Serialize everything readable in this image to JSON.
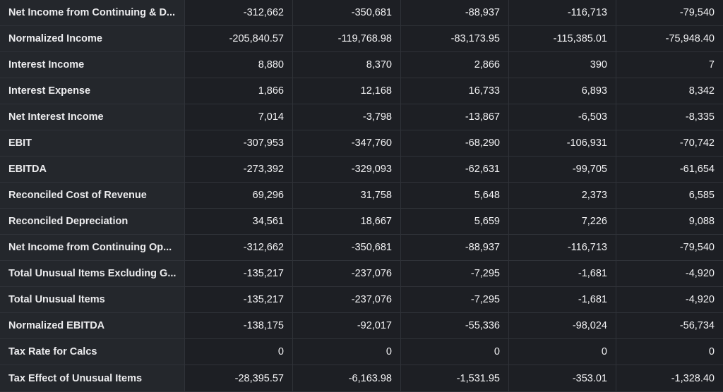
{
  "rows": [
    {
      "label": "Net Income from Continuing & D...",
      "values": [
        "-312,662",
        "-350,681",
        "-88,937",
        "-116,713",
        "-79,540"
      ]
    },
    {
      "label": "Normalized Income",
      "values": [
        "-205,840.57",
        "-119,768.98",
        "-83,173.95",
        "-115,385.01",
        "-75,948.40"
      ]
    },
    {
      "label": "Interest Income",
      "values": [
        "8,880",
        "8,370",
        "2,866",
        "390",
        "7"
      ]
    },
    {
      "label": "Interest Expense",
      "values": [
        "1,866",
        "12,168",
        "16,733",
        "6,893",
        "8,342"
      ]
    },
    {
      "label": "Net Interest Income",
      "values": [
        "7,014",
        "-3,798",
        "-13,867",
        "-6,503",
        "-8,335"
      ]
    },
    {
      "label": "EBIT",
      "values": [
        "-307,953",
        "-347,760",
        "-68,290",
        "-106,931",
        "-70,742"
      ]
    },
    {
      "label": "EBITDA",
      "values": [
        "-273,392",
        "-329,093",
        "-62,631",
        "-99,705",
        "-61,654"
      ]
    },
    {
      "label": "Reconciled Cost of Revenue",
      "values": [
        "69,296",
        "31,758",
        "5,648",
        "2,373",
        "6,585"
      ]
    },
    {
      "label": "Reconciled Depreciation",
      "values": [
        "34,561",
        "18,667",
        "5,659",
        "7,226",
        "9,088"
      ]
    },
    {
      "label": "Net Income from Continuing Op...",
      "values": [
        "-312,662",
        "-350,681",
        "-88,937",
        "-116,713",
        "-79,540"
      ]
    },
    {
      "label": "Total Unusual Items Excluding G...",
      "values": [
        "-135,217",
        "-237,076",
        "-7,295",
        "-1,681",
        "-4,920"
      ]
    },
    {
      "label": "Total Unusual Items",
      "values": [
        "-135,217",
        "-237,076",
        "-7,295",
        "-1,681",
        "-4,920"
      ]
    },
    {
      "label": "Normalized EBITDA",
      "values": [
        "-138,175",
        "-92,017",
        "-55,336",
        "-98,024",
        "-56,734"
      ]
    },
    {
      "label": "Tax Rate for Calcs",
      "values": [
        "0",
        "0",
        "0",
        "0",
        "0"
      ]
    },
    {
      "label": "Tax Effect of Unusual Items",
      "values": [
        "-28,395.57",
        "-6,163.98",
        "-1,531.95",
        "-353.01",
        "-1,328.40"
      ]
    }
  ]
}
